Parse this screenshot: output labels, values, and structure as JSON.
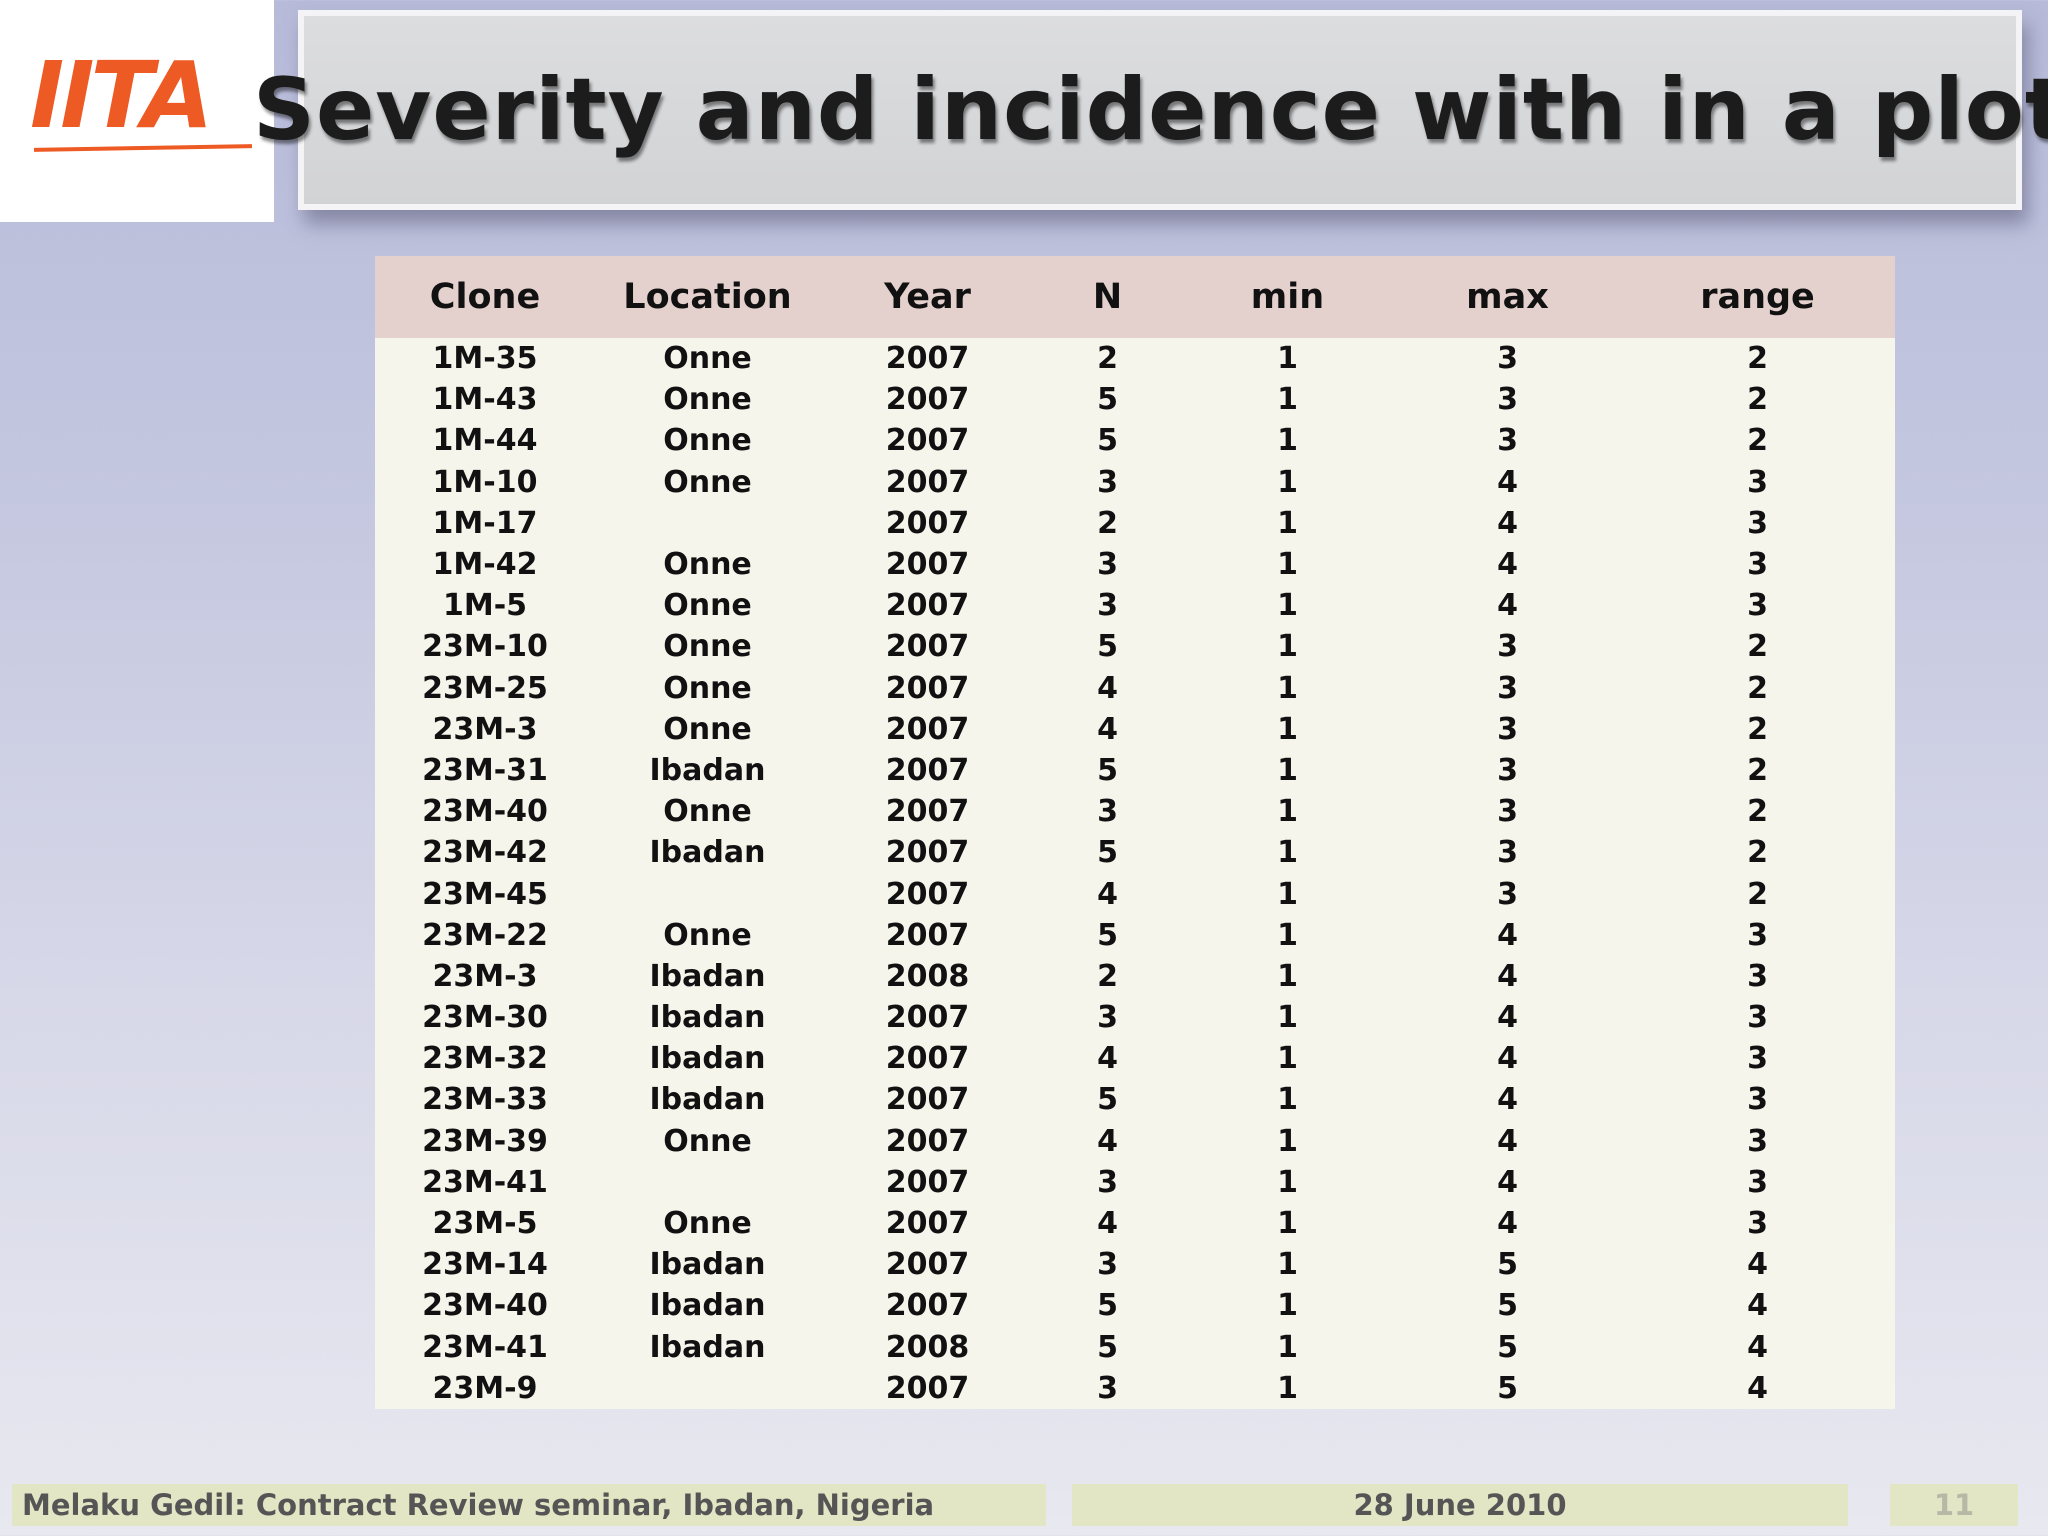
{
  "logo": {
    "text": "IITA"
  },
  "title": "Severity and incidence with in a plot",
  "table": {
    "headers": [
      "Clone",
      "Location",
      "Year",
      "N",
      "min",
      "max",
      "range"
    ],
    "rows": [
      [
        "1M-35",
        "Onne",
        "2007",
        "2",
        "1",
        "3",
        "2"
      ],
      [
        "1M-43",
        "Onne",
        "2007",
        "5",
        "1",
        "3",
        "2"
      ],
      [
        "1M-44",
        "Onne",
        "2007",
        "5",
        "1",
        "3",
        "2"
      ],
      [
        "1M-10",
        "Onne",
        "2007",
        "3",
        "1",
        "4",
        "3"
      ],
      [
        "1M-17",
        "",
        "2007",
        "2",
        "1",
        "4",
        "3"
      ],
      [
        "1M-42",
        "Onne",
        "2007",
        "3",
        "1",
        "4",
        "3"
      ],
      [
        "1M-5",
        "Onne",
        "2007",
        "3",
        "1",
        "4",
        "3"
      ],
      [
        "23M-10",
        "Onne",
        "2007",
        "5",
        "1",
        "3",
        "2"
      ],
      [
        "23M-25",
        "Onne",
        "2007",
        "4",
        "1",
        "3",
        "2"
      ],
      [
        "23M-3",
        "Onne",
        "2007",
        "4",
        "1",
        "3",
        "2"
      ],
      [
        "23M-31",
        "Ibadan",
        "2007",
        "5",
        "1",
        "3",
        "2"
      ],
      [
        "23M-40",
        "Onne",
        "2007",
        "3",
        "1",
        "3",
        "2"
      ],
      [
        "23M-42",
        "Ibadan",
        "2007",
        "5",
        "1",
        "3",
        "2"
      ],
      [
        "23M-45",
        "",
        "2007",
        "4",
        "1",
        "3",
        "2"
      ],
      [
        "23M-22",
        "Onne",
        "2007",
        "5",
        "1",
        "4",
        "3"
      ],
      [
        "23M-3",
        "Ibadan",
        "2008",
        "2",
        "1",
        "4",
        "3"
      ],
      [
        "23M-30",
        "Ibadan",
        "2007",
        "3",
        "1",
        "4",
        "3"
      ],
      [
        "23M-32",
        "Ibadan",
        "2007",
        "4",
        "1",
        "4",
        "3"
      ],
      [
        "23M-33",
        "Ibadan",
        "2007",
        "5",
        "1",
        "4",
        "3"
      ],
      [
        "23M-39",
        "Onne",
        "2007",
        "4",
        "1",
        "4",
        "3"
      ],
      [
        "23M-41",
        "",
        "2007",
        "3",
        "1",
        "4",
        "3"
      ],
      [
        "23M-5",
        "Onne",
        "2007",
        "4",
        "1",
        "4",
        "3"
      ],
      [
        "23M-14",
        "Ibadan",
        "2007",
        "3",
        "1",
        "5",
        "4"
      ],
      [
        "23M-40",
        "Ibadan",
        "2007",
        "5",
        "1",
        "5",
        "4"
      ],
      [
        "23M-41",
        "Ibadan",
        "2008",
        "5",
        "1",
        "5",
        "4"
      ],
      [
        "23M-9",
        "",
        "2007",
        "3",
        "1",
        "5",
        "4"
      ]
    ]
  },
  "footer": {
    "presenter": "Melaku Gedil: Contract Review seminar,  Ibadan, Nigeria",
    "date": "28 June 2010",
    "slide_number": "11"
  }
}
